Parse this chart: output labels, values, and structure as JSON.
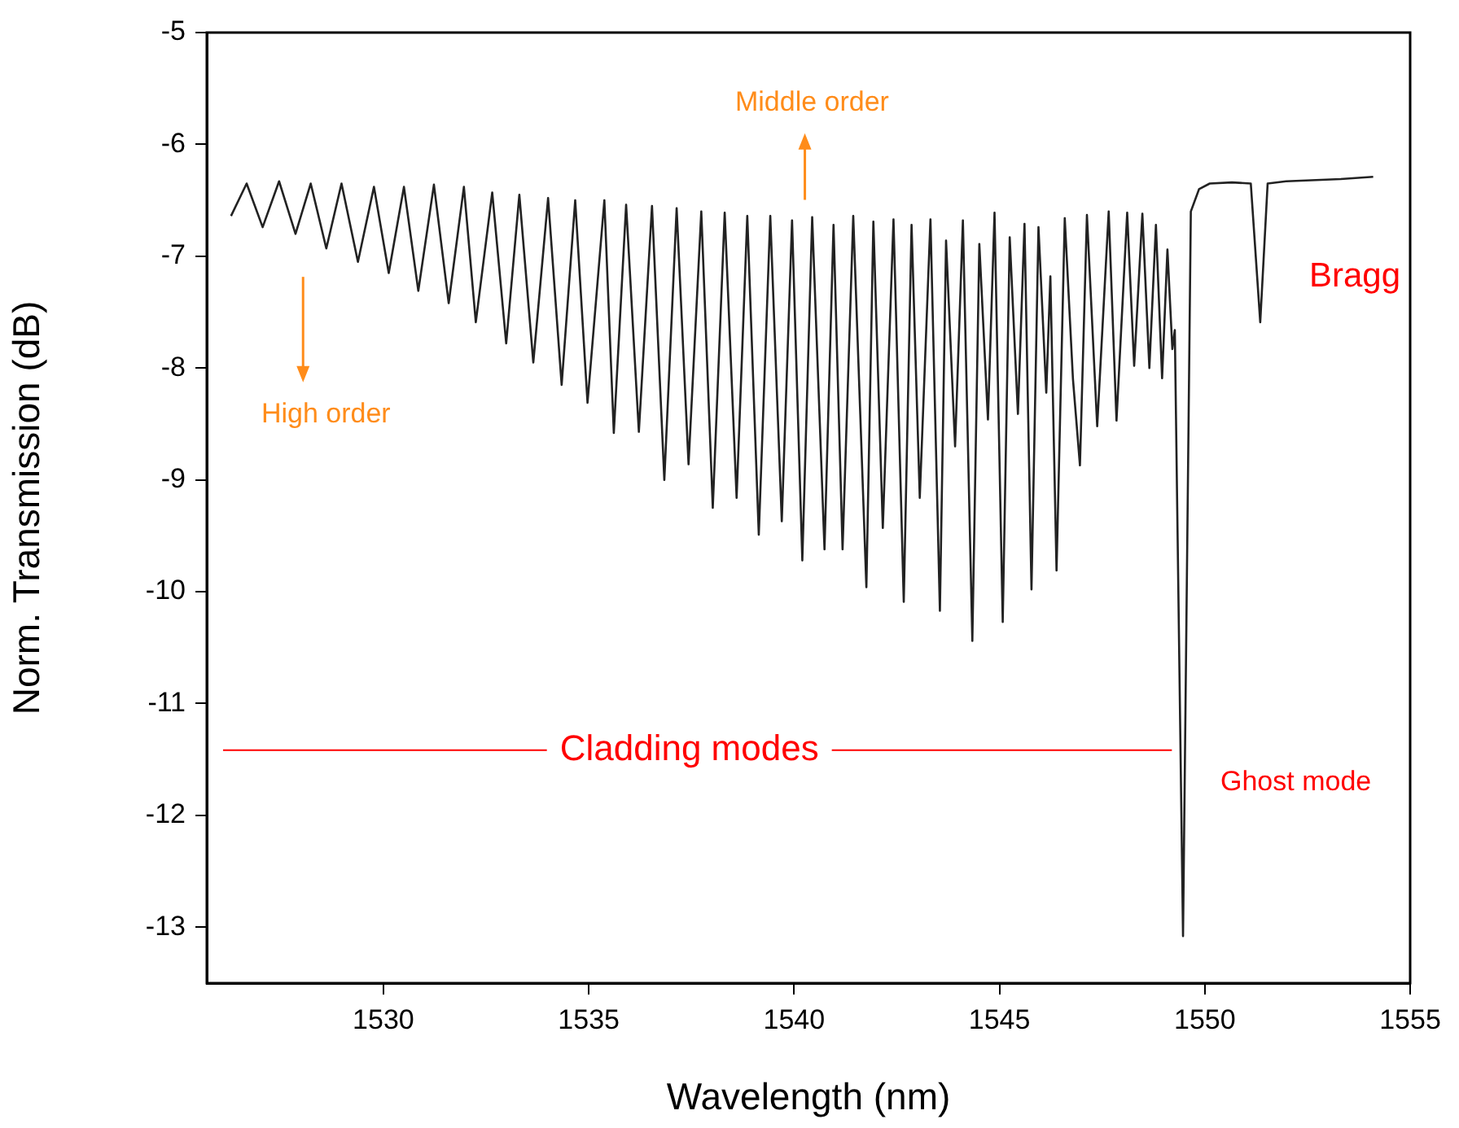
{
  "chart_data": {
    "type": "line",
    "xlabel": "Wavelength (nm)",
    "ylabel": "Norm. Transmission (dB)",
    "xlim": [
      1525.7,
      1555
    ],
    "xticks": [
      1530,
      1535,
      1540,
      1545,
      1550,
      1555
    ],
    "ylim": [
      -13.5,
      -5
    ],
    "yticks": [
      -13,
      -12,
      -11,
      -10,
      -9,
      -8,
      -7,
      -6,
      -5
    ],
    "marker": "none",
    "line_style": "solid",
    "series": [
      {
        "color": "#222222",
        "x": [
          1526.29,
          1526.67,
          1527.06,
          1527.46,
          1527.86,
          1528.23,
          1528.61,
          1528.98,
          1529.38,
          1529.77,
          1530.13,
          1530.5,
          1530.85,
          1531.23,
          1531.59,
          1531.96,
          1532.25,
          1532.65,
          1532.99,
          1533.31,
          1533.65,
          1534.01,
          1534.34,
          1534.67,
          1534.97,
          1535.38,
          1535.61,
          1535.91,
          1536.22,
          1536.54,
          1536.84,
          1537.14,
          1537.43,
          1537.74,
          1538.02,
          1538.31,
          1538.6,
          1538.86,
          1539.14,
          1539.42,
          1539.7,
          1539.95,
          1540.2,
          1540.44,
          1540.74,
          1540.96,
          1541.18,
          1541.44,
          1541.76,
          1541.93,
          1542.16,
          1542.42,
          1542.67,
          1542.86,
          1543.06,
          1543.32,
          1543.55,
          1543.7,
          1543.92,
          1544.11,
          1544.34,
          1544.51,
          1544.72,
          1544.88,
          1545.08,
          1545.25,
          1545.45,
          1545.61,
          1545.78,
          1545.95,
          1546.14,
          1546.24,
          1546.39,
          1546.59,
          1546.79,
          1546.96,
          1547.13,
          1547.38,
          1547.66,
          1547.85,
          1548.11,
          1548.28,
          1548.48,
          1548.65,
          1548.81,
          1548.96,
          1549.09,
          1549.21,
          1549.27,
          1549.47,
          1549.66,
          1549.86,
          1550.12,
          1550.66,
          1551.12,
          1551.35,
          1551.53,
          1551.98,
          1553.31,
          1554.1
        ],
        "values": [
          -6.64,
          -6.35,
          -6.74,
          -6.33,
          -6.8,
          -6.35,
          -6.93,
          -6.35,
          -7.05,
          -6.38,
          -7.15,
          -6.38,
          -7.31,
          -6.36,
          -7.42,
          -6.38,
          -7.59,
          -6.43,
          -7.78,
          -6.45,
          -7.95,
          -6.48,
          -8.15,
          -6.5,
          -8.31,
          -6.5,
          -8.58,
          -6.54,
          -8.57,
          -6.55,
          -9.0,
          -6.57,
          -8.86,
          -6.6,
          -9.25,
          -6.61,
          -9.16,
          -6.64,
          -9.49,
          -6.64,
          -9.37,
          -6.68,
          -9.72,
          -6.65,
          -9.62,
          -6.72,
          -9.62,
          -6.64,
          -9.96,
          -6.69,
          -9.43,
          -6.67,
          -10.09,
          -6.72,
          -9.16,
          -6.67,
          -10.17,
          -6.86,
          -8.7,
          -6.68,
          -10.44,
          -6.89,
          -8.46,
          -6.61,
          -10.27,
          -6.83,
          -8.41,
          -6.71,
          -9.98,
          -6.74,
          -8.22,
          -7.18,
          -9.81,
          -6.66,
          -8.1,
          -8.87,
          -6.63,
          -8.52,
          -6.6,
          -8.47,
          -6.61,
          -7.98,
          -6.62,
          -8.0,
          -6.72,
          -8.09,
          -6.94,
          -7.83,
          -7.66,
          -13.08,
          -6.6,
          -6.4,
          -6.35,
          -6.34,
          -6.35,
          -7.59,
          -6.35,
          -6.33,
          -6.31,
          -6.29
        ]
      }
    ],
    "annotations": [
      "High order",
      "Middle order",
      "Cladding modes",
      "Ghost mode",
      "Bragg"
    ]
  }
}
